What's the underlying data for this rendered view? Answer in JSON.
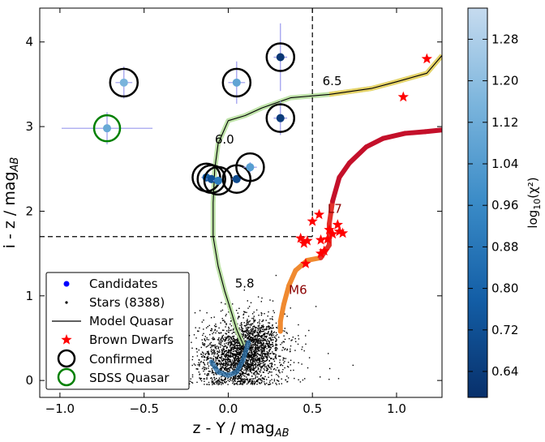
{
  "chart_data": {
    "type": "scatter",
    "xlabel": "z - Y / mag",
    "xlabel_sub": "AB",
    "ylabel": "i - z / mag",
    "ylabel_sub": "AB",
    "xlim": [
      -1.12,
      1.27
    ],
    "ylim": [
      -0.2,
      4.4
    ],
    "xticks": [
      -1.0,
      -0.5,
      0.0,
      0.5,
      1.0
    ],
    "xtick_labels": [
      "−1.0",
      "−0.5",
      "0.0",
      "0.5",
      "1.0"
    ],
    "yticks": [
      0,
      1,
      2,
      3,
      4
    ],
    "ytick_labels": [
      "0",
      "1",
      "2",
      "3",
      "4"
    ],
    "cuts": {
      "x": 0.5,
      "y": 1.7
    },
    "stars_count_label": "Stars (8388)",
    "candidates": [
      {
        "x": -0.62,
        "y": 3.52,
        "xerr": 0.05,
        "yerr": 0.19,
        "logchi2": 1.15,
        "confirmed": true
      },
      {
        "x": 0.05,
        "y": 3.52,
        "xerr": 0.05,
        "yerr": 0.25,
        "logchi2": 1.08,
        "confirmed": true
      },
      {
        "x": 0.31,
        "y": 3.82,
        "xerr": 0.04,
        "yerr": 0.4,
        "logchi2": 0.62,
        "confirmed": true
      },
      {
        "x": 0.31,
        "y": 3.1,
        "xerr": 0.04,
        "yerr": 0.2,
        "logchi2": 0.64,
        "confirmed": true
      },
      {
        "x": -0.72,
        "y": 2.98,
        "xerr": 0.27,
        "yerr": 0.19,
        "logchi2": 1.1,
        "confirmed": false,
        "sdss": true
      },
      {
        "x": -0.13,
        "y": 2.4,
        "xerr": 0.03,
        "yerr": 0.05,
        "logchi2": 0.8,
        "confirmed": true
      },
      {
        "x": -0.1,
        "y": 2.38,
        "xerr": 0.03,
        "yerr": 0.05,
        "logchi2": 0.72,
        "confirmed": true
      },
      {
        "x": -0.06,
        "y": 2.36,
        "xerr": 0.03,
        "yerr": 0.05,
        "logchi2": 0.9,
        "confirmed": true
      },
      {
        "x": 0.05,
        "y": 2.38,
        "xerr": 0.03,
        "yerr": 0.05,
        "logchi2": 0.7,
        "confirmed": true
      },
      {
        "x": 0.13,
        "y": 2.52,
        "xerr": 0.04,
        "yerr": 0.06,
        "logchi2": 1.05,
        "confirmed": true
      }
    ],
    "model_quasar": [
      {
        "x": 0.09,
        "y": 0.42
      },
      {
        "x": 0.05,
        "y": 0.6
      },
      {
        "x": 0.02,
        "y": 0.8
      },
      {
        "x": -0.02,
        "y": 1.05
      },
      {
        "x": -0.06,
        "y": 1.35
      },
      {
        "x": -0.09,
        "y": 1.7
      },
      {
        "x": -0.09,
        "y": 2.1
      },
      {
        "x": -0.08,
        "y": 2.5
      },
      {
        "x": -0.06,
        "y": 2.8
      },
      {
        "x": 0.0,
        "y": 3.07
      },
      {
        "x": 0.1,
        "y": 3.13
      },
      {
        "x": 0.2,
        "y": 3.22
      },
      {
        "x": 0.37,
        "y": 3.34
      },
      {
        "x": 0.6,
        "y": 3.38
      },
      {
        "x": 0.85,
        "y": 3.45
      },
      {
        "x": 1.0,
        "y": 3.53
      },
      {
        "x": 1.18,
        "y": 3.63
      },
      {
        "x": 1.27,
        "y": 3.84
      }
    ],
    "quasar_low_track": [
      {
        "x": -0.1,
        "y": 0.22
      },
      {
        "x": -0.06,
        "y": 0.1
      },
      {
        "x": 0.0,
        "y": 0.06
      },
      {
        "x": 0.05,
        "y": 0.1
      },
      {
        "x": 0.09,
        "y": 0.25
      },
      {
        "x": 0.12,
        "y": 0.45
      }
    ],
    "redshift_labels": [
      {
        "text": "5.8",
        "x": 0.04,
        "y": 1.1
      },
      {
        "text": "6.0",
        "x": -0.08,
        "y": 2.8
      },
      {
        "text": "6.5",
        "x": 0.56,
        "y": 3.49
      }
    ],
    "brown_dwarf_track": [
      {
        "x": 0.31,
        "y": 0.58
      },
      {
        "x": 0.31,
        "y": 0.7
      },
      {
        "x": 0.33,
        "y": 0.9
      },
      {
        "x": 0.36,
        "y": 1.12
      },
      {
        "x": 0.4,
        "y": 1.3
      },
      {
        "x": 0.47,
        "y": 1.42
      },
      {
        "x": 0.55,
        "y": 1.45
      },
      {
        "x": 0.6,
        "y": 1.6
      },
      {
        "x": 0.6,
        "y": 1.85
      },
      {
        "x": 0.62,
        "y": 2.12
      },
      {
        "x": 0.66,
        "y": 2.4
      },
      {
        "x": 0.72,
        "y": 2.57
      },
      {
        "x": 0.82,
        "y": 2.76
      },
      {
        "x": 0.92,
        "y": 2.86
      },
      {
        "x": 1.05,
        "y": 2.92
      },
      {
        "x": 1.17,
        "y": 2.94
      },
      {
        "x": 1.27,
        "y": 2.96
      }
    ],
    "spectral_labels": [
      {
        "text": "M6",
        "x": 0.36,
        "y": 1.02
      },
      {
        "text": "L7",
        "x": 0.59,
        "y": 1.98
      }
    ],
    "brown_dwarfs": [
      {
        "x": 0.43,
        "y": 1.68
      },
      {
        "x": 0.45,
        "y": 1.62
      },
      {
        "x": 0.47,
        "y": 1.65
      },
      {
        "x": 0.46,
        "y": 1.38
      },
      {
        "x": 0.5,
        "y": 1.88
      },
      {
        "x": 0.54,
        "y": 1.96
      },
      {
        "x": 0.55,
        "y": 1.66
      },
      {
        "x": 0.55,
        "y": 1.5
      },
      {
        "x": 0.57,
        "y": 1.53
      },
      {
        "x": 0.59,
        "y": 1.67
      },
      {
        "x": 0.6,
        "y": 1.78
      },
      {
        "x": 0.62,
        "y": 1.73
      },
      {
        "x": 0.65,
        "y": 1.84
      },
      {
        "x": 0.66,
        "y": 1.76
      },
      {
        "x": 0.68,
        "y": 1.74
      },
      {
        "x": 1.04,
        "y": 3.35
      },
      {
        "x": 1.18,
        "y": 3.8
      }
    ],
    "legend": {
      "position": "lower-left",
      "entries": [
        "Candidates",
        "Stars (8388)",
        "Model Quasar",
        "Brown Dwarfs",
        "Confirmed",
        "SDSS Quasar"
      ]
    },
    "colorbar": {
      "label": "log",
      "label_sub": "10",
      "label_arg": "(χ²)",
      "label_full": "log10(χ²)",
      "range": [
        0.59,
        1.34
      ],
      "ticks": [
        0.64,
        0.72,
        0.8,
        0.88,
        0.96,
        1.04,
        1.12,
        1.2,
        1.28
      ],
      "tick_labels": [
        "0.64",
        "0.72",
        "0.80",
        "0.88",
        "0.96",
        "1.04",
        "1.12",
        "1.20",
        "1.28"
      ],
      "colors": {
        "low": "#08306b",
        "mid": "#2171b5",
        "high": "#c6dbef"
      }
    },
    "colors": {
      "brown_dwarf": "#ff0000",
      "confirmed_ring": "#000000",
      "sdss_ring": "#008000",
      "errorbar": "#9999ee",
      "cut_line": "#000000"
    }
  }
}
